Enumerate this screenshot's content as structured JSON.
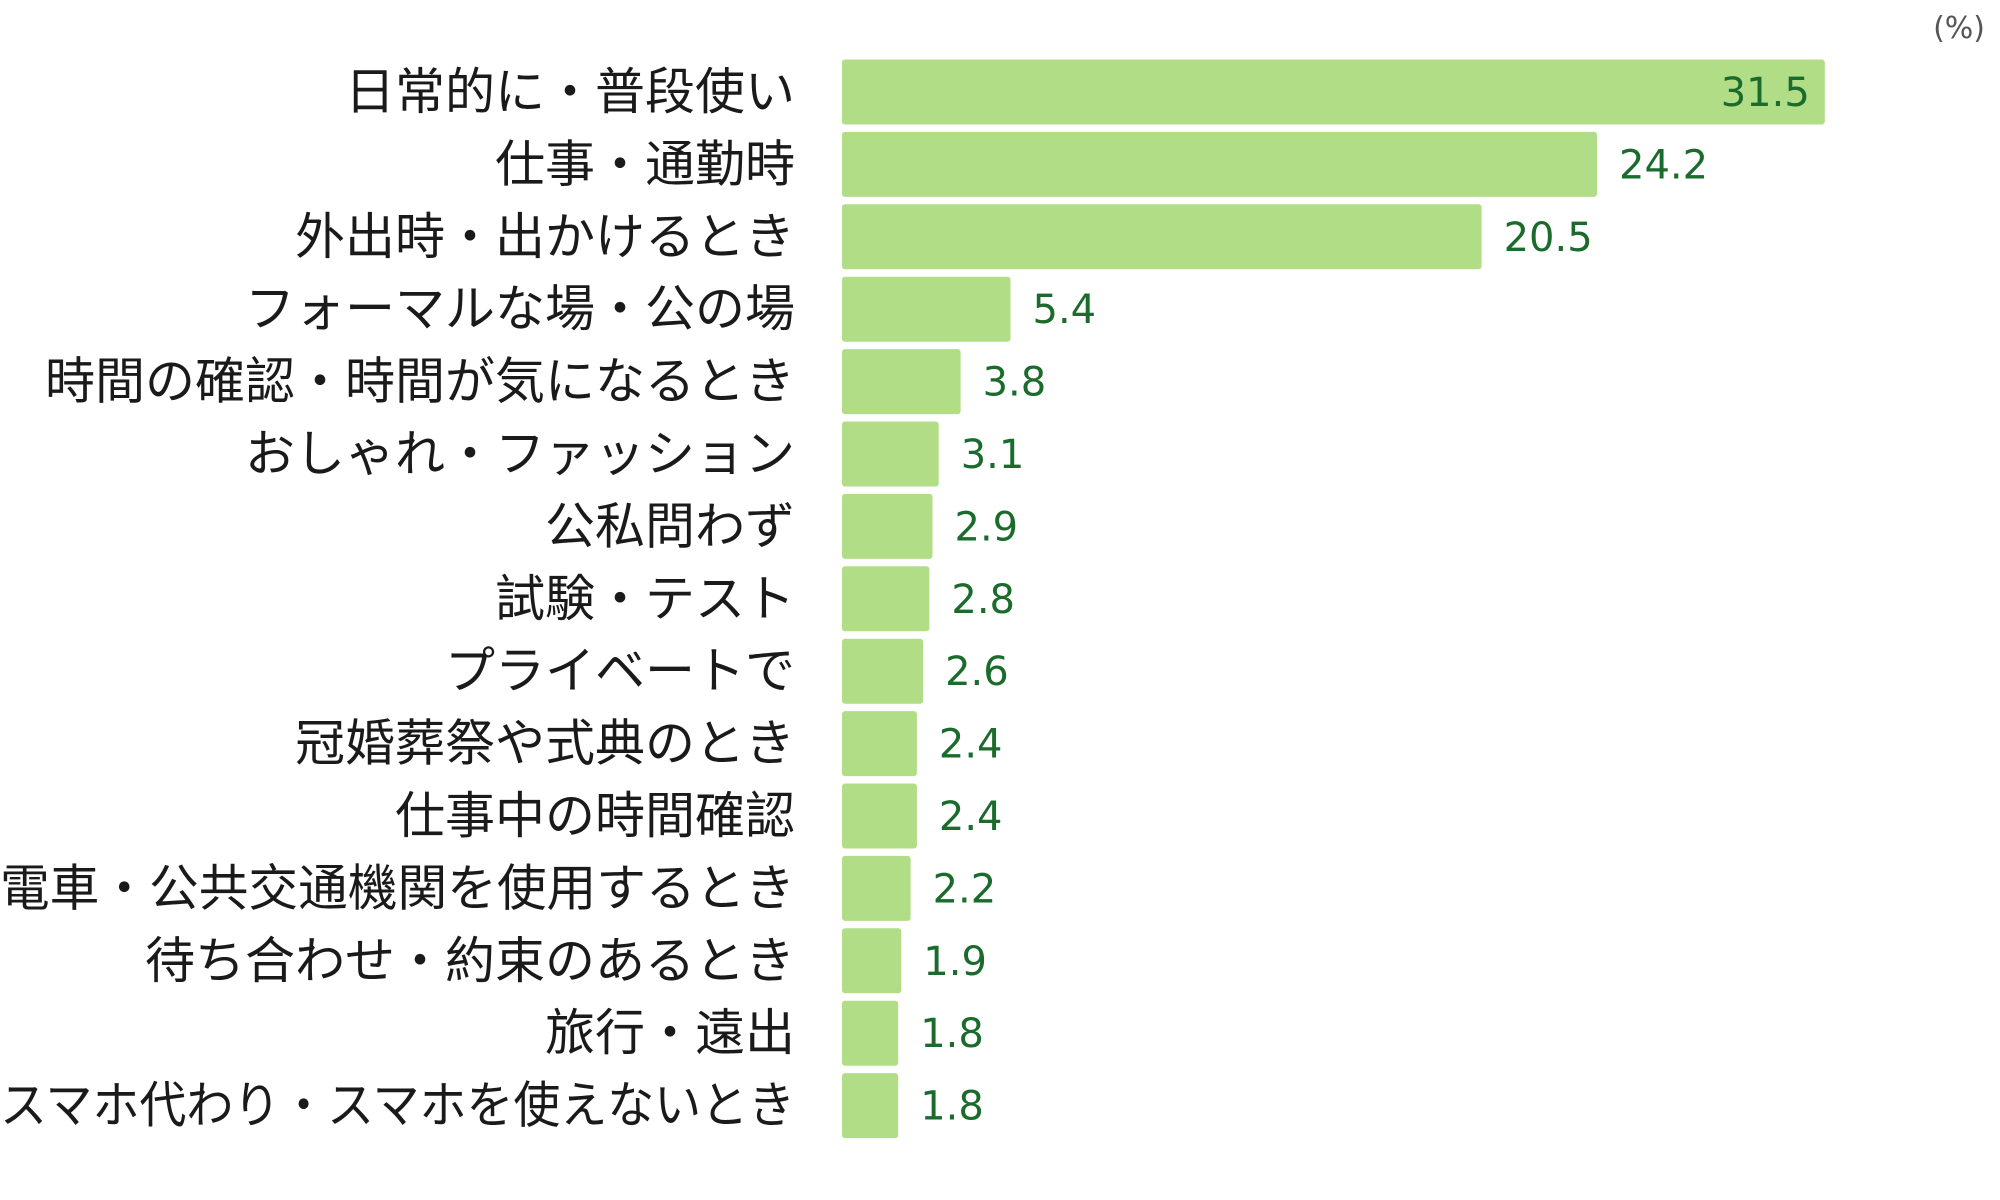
{
  "chart_data": {
    "type": "bar",
    "orientation": "horizontal",
    "unit": "(%)",
    "categories": [
      "日常的に・普段使い",
      "仕事・通勤時",
      "外出時・出かけるとき",
      "フォーマルな場・公の場",
      "時間の確認・時間が気になるとき",
      "おしゃれ・ファッション",
      "公私問わず",
      "試験・テスト",
      "プライベートで",
      "冠婚葬祭や式典のとき",
      "仕事中の時間確認",
      "電車・公共交通機関を使用するとき",
      "待ち合わせ・約束のあるとき",
      "旅行・遠出",
      "スマホ代わり・スマホを使えないとき"
    ],
    "values": [
      31.5,
      24.2,
      20.5,
      5.4,
      3.8,
      3.1,
      2.9,
      2.8,
      2.6,
      2.4,
      2.4,
      2.2,
      1.9,
      1.8,
      1.8
    ],
    "value_labels": [
      "31.5",
      "24.2",
      "20.5",
      "5.4",
      "3.8",
      "3.1",
      "2.9",
      "2.8",
      "2.6",
      "2.4",
      "2.4",
      "2.2",
      "1.9",
      "1.8",
      "1.8"
    ],
    "xlim": [
      0,
      35
    ],
    "grid": false,
    "legend": "none",
    "bar_color": "#b1dd87",
    "value_label_color": "#1a6b2c",
    "category_label_color": "#1a1a1a"
  }
}
